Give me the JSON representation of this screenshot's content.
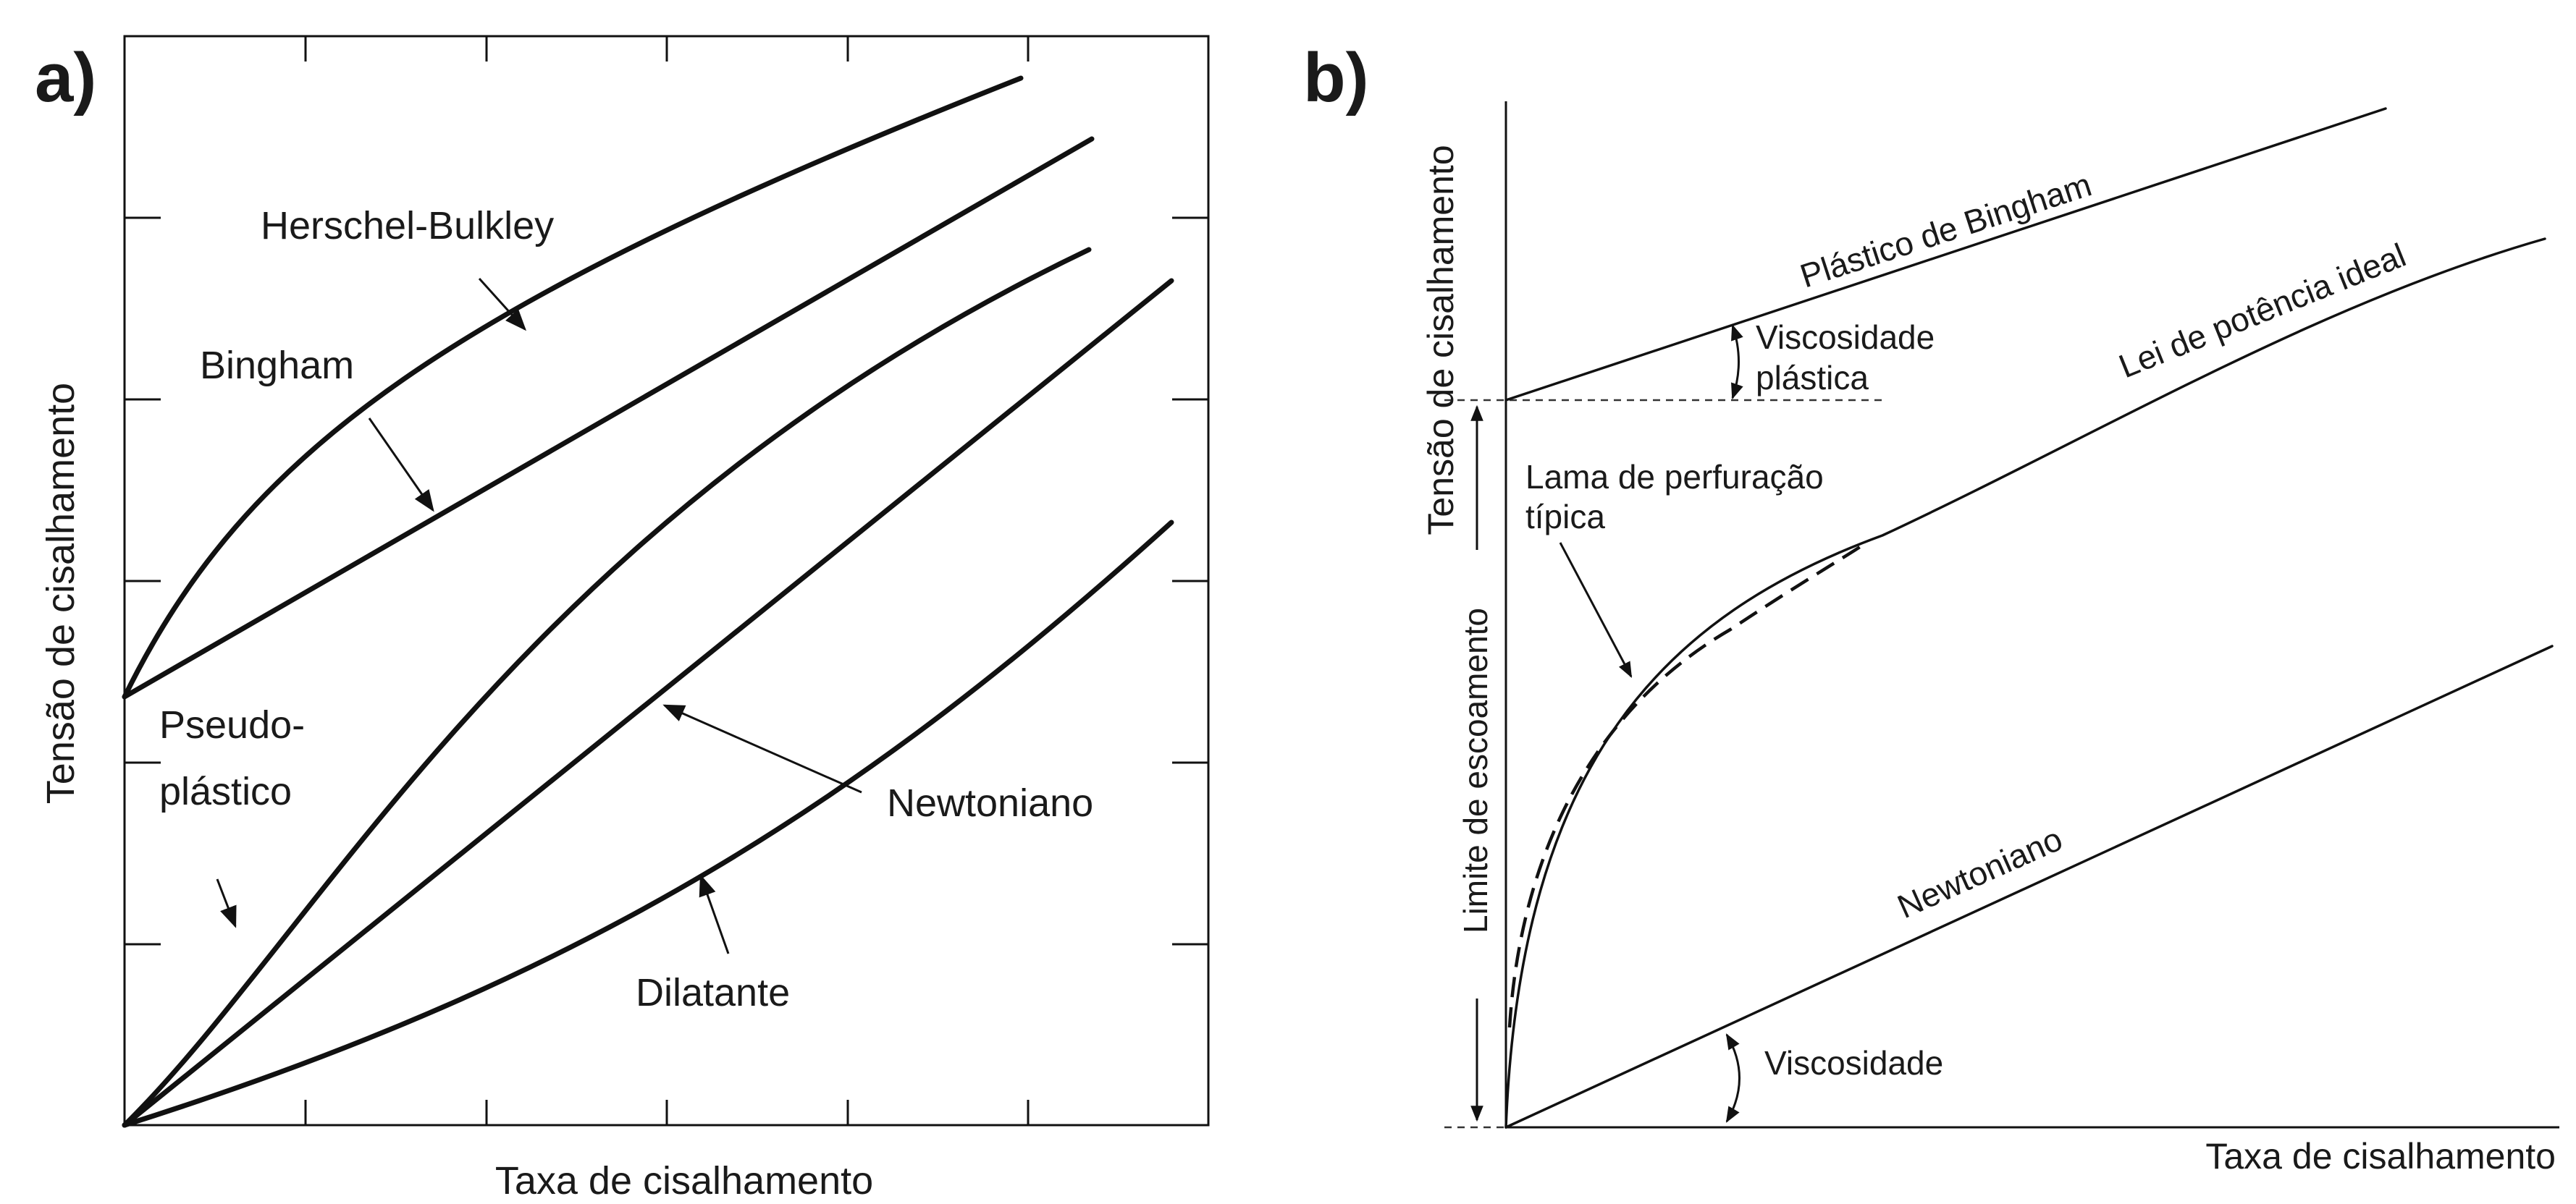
{
  "panel_a": {
    "panel_label": "a)",
    "y_axis_title": "Tensão de cisalhamento",
    "x_axis_title": "Taxa de cisalhamento",
    "curves": {
      "herschel_bulkley": "Herschel-Bulkley",
      "bingham": "Bingham",
      "pseudoplastic_line1": "Pseudo-",
      "pseudoplastic_line2": "plástico",
      "newtonian": "Newtoniano",
      "dilatant": "Dilatante"
    }
  },
  "panel_b": {
    "panel_label": "b)",
    "y_axis_title": "Tensão de cisalhamento",
    "x_axis_title": "Taxa de cisalhamento",
    "curves": {
      "bingham_plastic": "Plástico de Bingham",
      "power_law": "Lei de potência ideal",
      "newtonian": "Newtoniano",
      "drilling_mud_line1": "Lama de perfuração",
      "drilling_mud_line2": "típica"
    },
    "annotations": {
      "plastic_viscosity_line1": "Viscosidade",
      "plastic_viscosity_line2": "plástica",
      "viscosity": "Viscosidade",
      "yield_point": "Limite de escoamento"
    }
  }
}
